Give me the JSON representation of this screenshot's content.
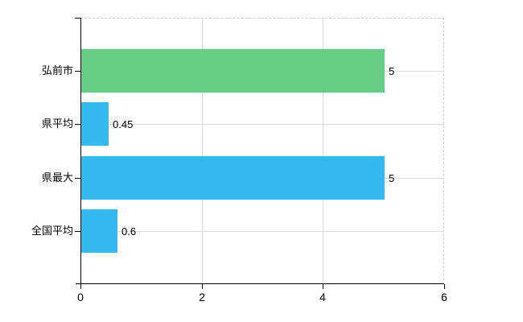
{
  "chart_data": {
    "type": "bar",
    "orientation": "horizontal",
    "title": "",
    "xlabel": "",
    "ylabel": "",
    "categories": [
      "弘前市",
      "県平均",
      "県最大",
      "全国平均"
    ],
    "values": [
      5,
      0.45,
      5,
      0.6
    ],
    "value_labels": [
      "5",
      "0.45",
      "5",
      "0.6"
    ],
    "bar_colors": [
      "#68cd84",
      "#35baf0",
      "#35baf0",
      "#35baf0"
    ],
    "xlim": [
      0,
      6
    ],
    "x_ticks": [
      0,
      2,
      4,
      6
    ],
    "x_tick_labels": [
      "0",
      "2",
      "4",
      "6"
    ],
    "grid": true,
    "legend": "none"
  },
  "colors": {
    "background": "#ffffff",
    "axis": "#000000",
    "gridline": "#dcdcdc",
    "dashed_border": "#c9c9c9",
    "bar_green": "#68cd84",
    "bar_blue": "#35baf0",
    "label_text": "#000000"
  }
}
